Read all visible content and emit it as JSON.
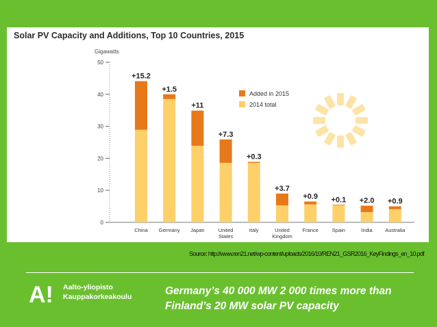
{
  "chart_data": {
    "type": "bar",
    "title": "Solar PV Capacity and Additions, Top 10 Countries, 2015",
    "ylabel": "Gigawatts",
    "ylim": [
      0,
      50
    ],
    "yticks": [
      0,
      10,
      20,
      30,
      40,
      50
    ],
    "categories": [
      "China",
      "Germany",
      "Japan",
      "United States",
      "Italy",
      "United Kingdom",
      "France",
      "Spain",
      "India",
      "Australia"
    ],
    "series": [
      {
        "name": "2014 total",
        "color": "#fdd06a",
        "values": [
          28.9,
          38.5,
          23.9,
          18.6,
          18.6,
          5.3,
          5.6,
          5.4,
          3.2,
          4.1
        ]
      },
      {
        "name": "Added in 2015",
        "color": "#e8791a",
        "values": [
          15.2,
          1.5,
          11,
          7.3,
          0.3,
          3.7,
          0.9,
          0.1,
          2.0,
          0.9
        ]
      }
    ],
    "data_labels": [
      "+15.2",
      "+1.5",
      "+11",
      "+7.3",
      "+0.3",
      "+3.7",
      "+0.9",
      "+0.1",
      "+2.0",
      "+0.9"
    ],
    "stacked": true,
    "legend": "top-right",
    "grid": false
  },
  "footer": {
    "source": "Source: http://www.ren21.net/wp-content/uploads/2016/10/REN21_GSR2016_KeyFindings_en_10.pdf",
    "logo_mark": "A!",
    "logo_line1": "Aalto-yliopisto",
    "logo_line2": "Kauppakorkeakoulu",
    "tagline": "Germany’s 40 000 MW 2 000 times more than Finland’s 20 MW solar PV capacity"
  },
  "colors": {
    "background": "#6abf2f",
    "panel": "#ffffff",
    "added": "#e8791a",
    "total": "#fdd06a"
  }
}
